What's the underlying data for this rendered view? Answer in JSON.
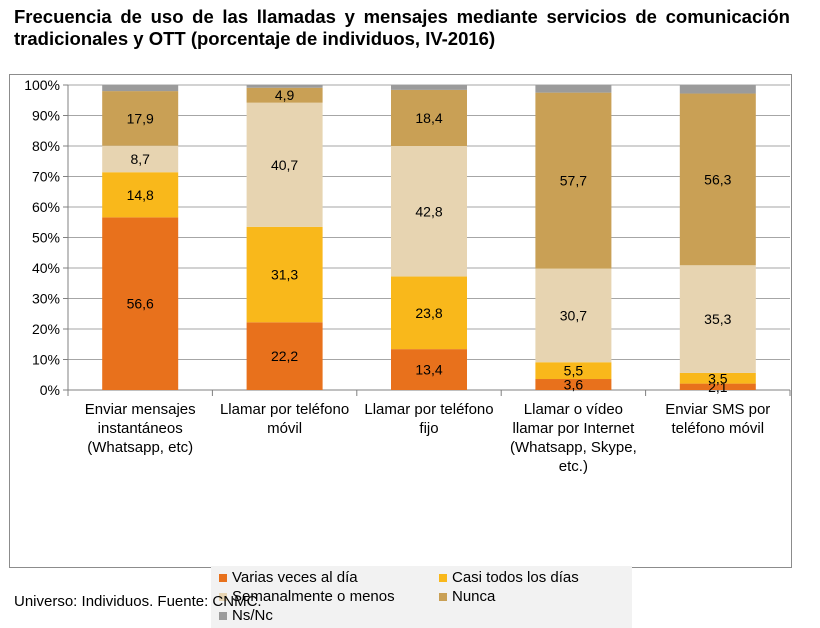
{
  "title": "Frecuencia de uso de las llamadas y mensajes mediante servicios de comunicación tradicionales y OTT (porcentaje de individuos, IV-2016)",
  "footnote": "Universo: Individuos. Fuente: CNMC.",
  "colors": {
    "varias": "#e8711c",
    "casi": "#f9b81b",
    "semanal": "#e7d4b1",
    "nunca": "#c9a055",
    "nsnc": "#9b9b9b",
    "grid": "#a6a6a6",
    "axis": "#808080"
  },
  "chart_data": {
    "type": "bar",
    "stacked": true,
    "ylim": [
      0,
      100
    ],
    "yticks": [
      "0%",
      "10%",
      "20%",
      "30%",
      "40%",
      "50%",
      "60%",
      "70%",
      "80%",
      "90%",
      "100%"
    ],
    "grid": true,
    "legend_position": "bottom",
    "categories": [
      [
        "Enviar mensajes",
        "instantáneos",
        "(Whatsapp, etc)"
      ],
      [
        "Llamar por teléfono",
        "móvil"
      ],
      [
        "Llamar por teléfono",
        "fijo"
      ],
      [
        "Llamar o vídeo",
        "llamar por Internet",
        "(Whatsapp, Skype,",
        "etc.)"
      ],
      [
        "Enviar SMS por",
        "teléfono móvil"
      ]
    ],
    "series": [
      {
        "name": "Varias veces al día",
        "color_key": "varias",
        "values": [
          56.6,
          22.2,
          13.4,
          3.6,
          2.1
        ],
        "labels": [
          "56,6",
          "22,2",
          "13,4",
          "3,6",
          "2,1"
        ]
      },
      {
        "name": "Casi todos los días",
        "color_key": "casi",
        "values": [
          14.8,
          31.3,
          23.8,
          5.5,
          3.5
        ],
        "labels": [
          "14,8",
          "31,3",
          "23,8",
          "5,5",
          "3,5"
        ]
      },
      {
        "name": "Semanalmente o menos",
        "color_key": "semanal",
        "values": [
          8.7,
          40.7,
          42.8,
          30.7,
          35.3
        ],
        "labels": [
          "8,7",
          "40,7",
          "42,8",
          "30,7",
          "35,3"
        ]
      },
      {
        "name": "Nunca",
        "color_key": "nunca",
        "values": [
          17.9,
          4.9,
          18.4,
          57.7,
          56.3
        ],
        "labels": [
          "17,9",
          "4,9",
          "18,4",
          "57,7",
          "56,3"
        ]
      },
      {
        "name": "Ns/Nc",
        "color_key": "nsnc",
        "values": [
          2.0,
          0.9,
          1.6,
          2.5,
          2.8
        ],
        "labels": [
          "",
          "",
          "",
          "",
          ""
        ]
      }
    ]
  }
}
